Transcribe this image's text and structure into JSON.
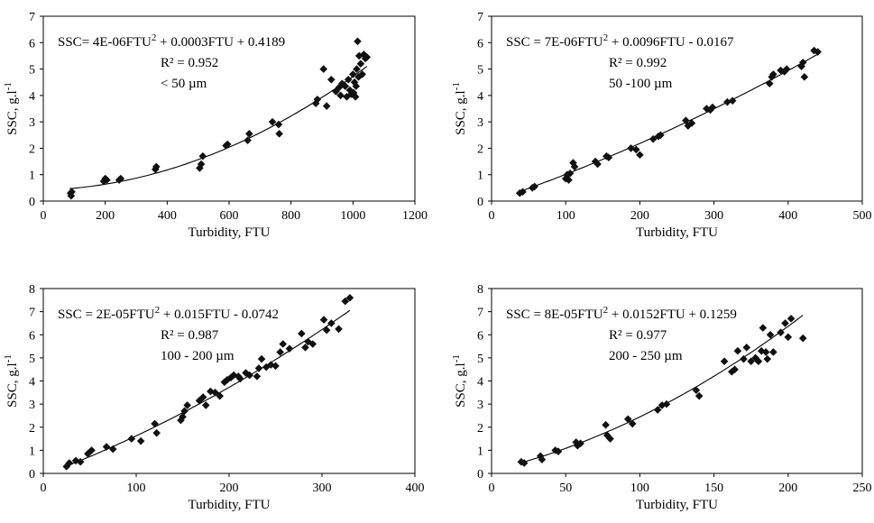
{
  "chart_data": [
    {
      "type": "scatter",
      "xlabel": "Turbidity, FTU",
      "ylabel": "SSC,  g.l",
      "ylabel_sup": "-1",
      "xlim": [
        0,
        1200
      ],
      "ylim": [
        0,
        7
      ],
      "xticks": [
        "0",
        "200",
        "400",
        "600",
        "800",
        "1000",
        "1200"
      ],
      "yticks": [
        "0",
        "1",
        "2",
        "3",
        "4",
        "5",
        "6",
        "7"
      ],
      "annotation": {
        "equation_pre": "SSC= 4E-06FTU",
        "equation_sup": "2",
        "equation_post": " + 0.0003FTU + 0.4189",
        "r2": "R² = 0.952",
        "size": "< 50 µm"
      },
      "trendline": {
        "a": 4e-06,
        "b": 0.0003,
        "c": 0.4189,
        "x_range": [
          85,
          1045
        ]
      },
      "points": [
        [
          88,
          0.3
        ],
        [
          90,
          0.2
        ],
        [
          92,
          0.35
        ],
        [
          195,
          0.75
        ],
        [
          200,
          0.85
        ],
        [
          205,
          0.8
        ],
        [
          245,
          0.8
        ],
        [
          250,
          0.85
        ],
        [
          362,
          1.2
        ],
        [
          365,
          1.3
        ],
        [
          505,
          1.25
        ],
        [
          510,
          1.4
        ],
        [
          515,
          1.7
        ],
        [
          590,
          2.1
        ],
        [
          595,
          2.15
        ],
        [
          660,
          2.3
        ],
        [
          665,
          2.55
        ],
        [
          740,
          3.0
        ],
        [
          760,
          2.9
        ],
        [
          762,
          2.55
        ],
        [
          880,
          3.7
        ],
        [
          885,
          3.85
        ],
        [
          905,
          5.0
        ],
        [
          915,
          3.6
        ],
        [
          930,
          4.6
        ],
        [
          945,
          4.15
        ],
        [
          955,
          4.3
        ],
        [
          960,
          4.0
        ],
        [
          965,
          4.45
        ],
        [
          975,
          4.35
        ],
        [
          980,
          3.95
        ],
        [
          985,
          4.6
        ],
        [
          990,
          4.2
        ],
        [
          1000,
          4.8
        ],
        [
          1002,
          4.1
        ],
        [
          1005,
          4.5
        ],
        [
          1008,
          3.95
        ],
        [
          1012,
          5.0
        ],
        [
          1015,
          6.05
        ],
        [
          1018,
          4.7
        ],
        [
          1020,
          5.5
        ],
        [
          1025,
          5.2
        ],
        [
          1030,
          4.8
        ],
        [
          1035,
          5.55
        ],
        [
          1040,
          5.4
        ],
        [
          1045,
          5.45
        ],
        [
          995,
          4.05
        ],
        [
          1010,
          4.35
        ]
      ]
    },
    {
      "type": "scatter",
      "xlabel": "Turbidity, FTU",
      "ylabel": "SSC,  g.l",
      "ylabel_sup": "-1",
      "xlim": [
        0,
        500
      ],
      "ylim": [
        0,
        7
      ],
      "xticks": [
        "0",
        "100",
        "200",
        "300",
        "400",
        "500"
      ],
      "yticks": [
        "0",
        "1",
        "2",
        "3",
        "4",
        "5",
        "6",
        "7"
      ],
      "annotation": {
        "equation_pre": "SSC = 7E-06FTU",
        "equation_sup": "2",
        "equation_post": " + 0.0096FTU - 0.0167",
        "r2": "R² = 0.992",
        "size": "50 -100 µm"
      },
      "trendline": {
        "a": 7e-06,
        "b": 0.0096,
        "c": -0.0167,
        "x_range": [
          38,
          440
        ]
      },
      "points": [
        [
          38,
          0.3
        ],
        [
          42,
          0.35
        ],
        [
          55,
          0.5
        ],
        [
          58,
          0.55
        ],
        [
          100,
          0.85
        ],
        [
          102,
          1.0
        ],
        [
          104,
          0.8
        ],
        [
          106,
          1.05
        ],
        [
          110,
          1.45
        ],
        [
          112,
          1.3
        ],
        [
          140,
          1.5
        ],
        [
          143,
          1.4
        ],
        [
          155,
          1.7
        ],
        [
          158,
          1.65
        ],
        [
          188,
          2.0
        ],
        [
          195,
          1.95
        ],
        [
          200,
          1.75
        ],
        [
          218,
          2.35
        ],
        [
          225,
          2.45
        ],
        [
          228,
          2.5
        ],
        [
          262,
          3.05
        ],
        [
          265,
          2.85
        ],
        [
          270,
          2.95
        ],
        [
          290,
          3.5
        ],
        [
          295,
          3.45
        ],
        [
          298,
          3.55
        ],
        [
          318,
          3.75
        ],
        [
          325,
          3.8
        ],
        [
          375,
          4.45
        ],
        [
          378,
          4.7
        ],
        [
          380,
          4.8
        ],
        [
          390,
          4.95
        ],
        [
          395,
          4.9
        ],
        [
          398,
          5.0
        ],
        [
          418,
          5.1
        ],
        [
          420,
          5.25
        ],
        [
          422,
          4.7
        ],
        [
          435,
          5.7
        ],
        [
          440,
          5.65
        ]
      ]
    },
    {
      "type": "scatter",
      "xlabel": "Turbidity, FTU",
      "ylabel": "SSC,  g.l",
      "ylabel_sup": "-1",
      "xlim": [
        0,
        400
      ],
      "ylim": [
        0,
        8
      ],
      "xticks": [
        "0",
        "100",
        "200",
        "300",
        "400"
      ],
      "yticks": [
        "0",
        "1",
        "2",
        "3",
        "4",
        "5",
        "6",
        "7",
        "8"
      ],
      "annotation": {
        "equation_pre": "SSC = 2E-05FTU",
        "equation_sup": "2",
        "equation_post": " + 0.015FTU - 0.0742",
        "r2": "R² = 0.987",
        "size": "100 - 200 µm"
      },
      "trendline": {
        "a": 2e-05,
        "b": 0.015,
        "c": -0.0742,
        "x_range": [
          25,
          330
        ]
      },
      "points": [
        [
          25,
          0.3
        ],
        [
          28,
          0.45
        ],
        [
          35,
          0.55
        ],
        [
          40,
          0.5
        ],
        [
          48,
          0.85
        ],
        [
          52,
          1.0
        ],
        [
          68,
          1.15
        ],
        [
          75,
          1.05
        ],
        [
          95,
          1.5
        ],
        [
          105,
          1.4
        ],
        [
          120,
          2.15
        ],
        [
          122,
          1.75
        ],
        [
          148,
          2.3
        ],
        [
          150,
          2.45
        ],
        [
          152,
          2.7
        ],
        [
          155,
          2.95
        ],
        [
          168,
          3.15
        ],
        [
          172,
          3.3
        ],
        [
          175,
          2.95
        ],
        [
          180,
          3.55
        ],
        [
          185,
          3.5
        ],
        [
          190,
          3.35
        ],
        [
          195,
          3.95
        ],
        [
          198,
          4.05
        ],
        [
          202,
          4.15
        ],
        [
          205,
          4.25
        ],
        [
          210,
          4.2
        ],
        [
          212,
          4.1
        ],
        [
          218,
          4.35
        ],
        [
          222,
          4.25
        ],
        [
          230,
          4.2
        ],
        [
          232,
          4.55
        ],
        [
          235,
          4.95
        ],
        [
          240,
          4.6
        ],
        [
          245,
          4.7
        ],
        [
          250,
          4.65
        ],
        [
          255,
          5.25
        ],
        [
          258,
          5.6
        ],
        [
          265,
          5.4
        ],
        [
          278,
          6.05
        ],
        [
          282,
          5.45
        ],
        [
          285,
          5.7
        ],
        [
          290,
          5.6
        ],
        [
          302,
          6.65
        ],
        [
          305,
          6.2
        ],
        [
          310,
          6.5
        ],
        [
          318,
          6.25
        ],
        [
          325,
          7.45
        ],
        [
          330,
          7.6
        ]
      ]
    },
    {
      "type": "scatter",
      "xlabel": "Turbidity, FTU",
      "ylabel": "SSC,  g.l",
      "ylabel_sup": "-1",
      "xlim": [
        0,
        250
      ],
      "ylim": [
        0,
        8
      ],
      "xticks": [
        "0",
        "50",
        "100",
        "150",
        "200",
        "250"
      ],
      "yticks": [
        "0",
        "1",
        "2",
        "3",
        "4",
        "5",
        "6",
        "7",
        "8"
      ],
      "annotation": {
        "equation_pre": "SSC = 8E-05FTU",
        "equation_sup": "2",
        "equation_post": " + 0.0152FTU + 0.1259",
        "r2": "R² = 0.977",
        "size": "200 - 250 µm"
      },
      "trendline": {
        "a": 8e-05,
        "b": 0.0152,
        "c": 0.1259,
        "x_range": [
          20,
          210
        ]
      },
      "points": [
        [
          20,
          0.5
        ],
        [
          22,
          0.45
        ],
        [
          33,
          0.75
        ],
        [
          34,
          0.6
        ],
        [
          43,
          1.0
        ],
        [
          45,
          0.95
        ],
        [
          57,
          1.35
        ],
        [
          58,
          1.2
        ],
        [
          60,
          1.3
        ],
        [
          77,
          2.1
        ],
        [
          78,
          1.65
        ],
        [
          80,
          1.5
        ],
        [
          92,
          2.35
        ],
        [
          95,
          2.15
        ],
        [
          112,
          2.75
        ],
        [
          115,
          2.95
        ],
        [
          118,
          3.0
        ],
        [
          138,
          3.6
        ],
        [
          140,
          3.35
        ],
        [
          157,
          4.85
        ],
        [
          162,
          4.4
        ],
        [
          164,
          4.5
        ],
        [
          166,
          5.3
        ],
        [
          170,
          4.95
        ],
        [
          172,
          5.45
        ],
        [
          175,
          4.85
        ],
        [
          178,
          5.0
        ],
        [
          180,
          4.85
        ],
        [
          182,
          5.3
        ],
        [
          183,
          6.3
        ],
        [
          185,
          5.25
        ],
        [
          186,
          4.95
        ],
        [
          188,
          6.0
        ],
        [
          190,
          5.25
        ],
        [
          195,
          6.1
        ],
        [
          198,
          6.5
        ],
        [
          200,
          5.9
        ],
        [
          202,
          6.7
        ],
        [
          210,
          5.85
        ]
      ]
    }
  ]
}
